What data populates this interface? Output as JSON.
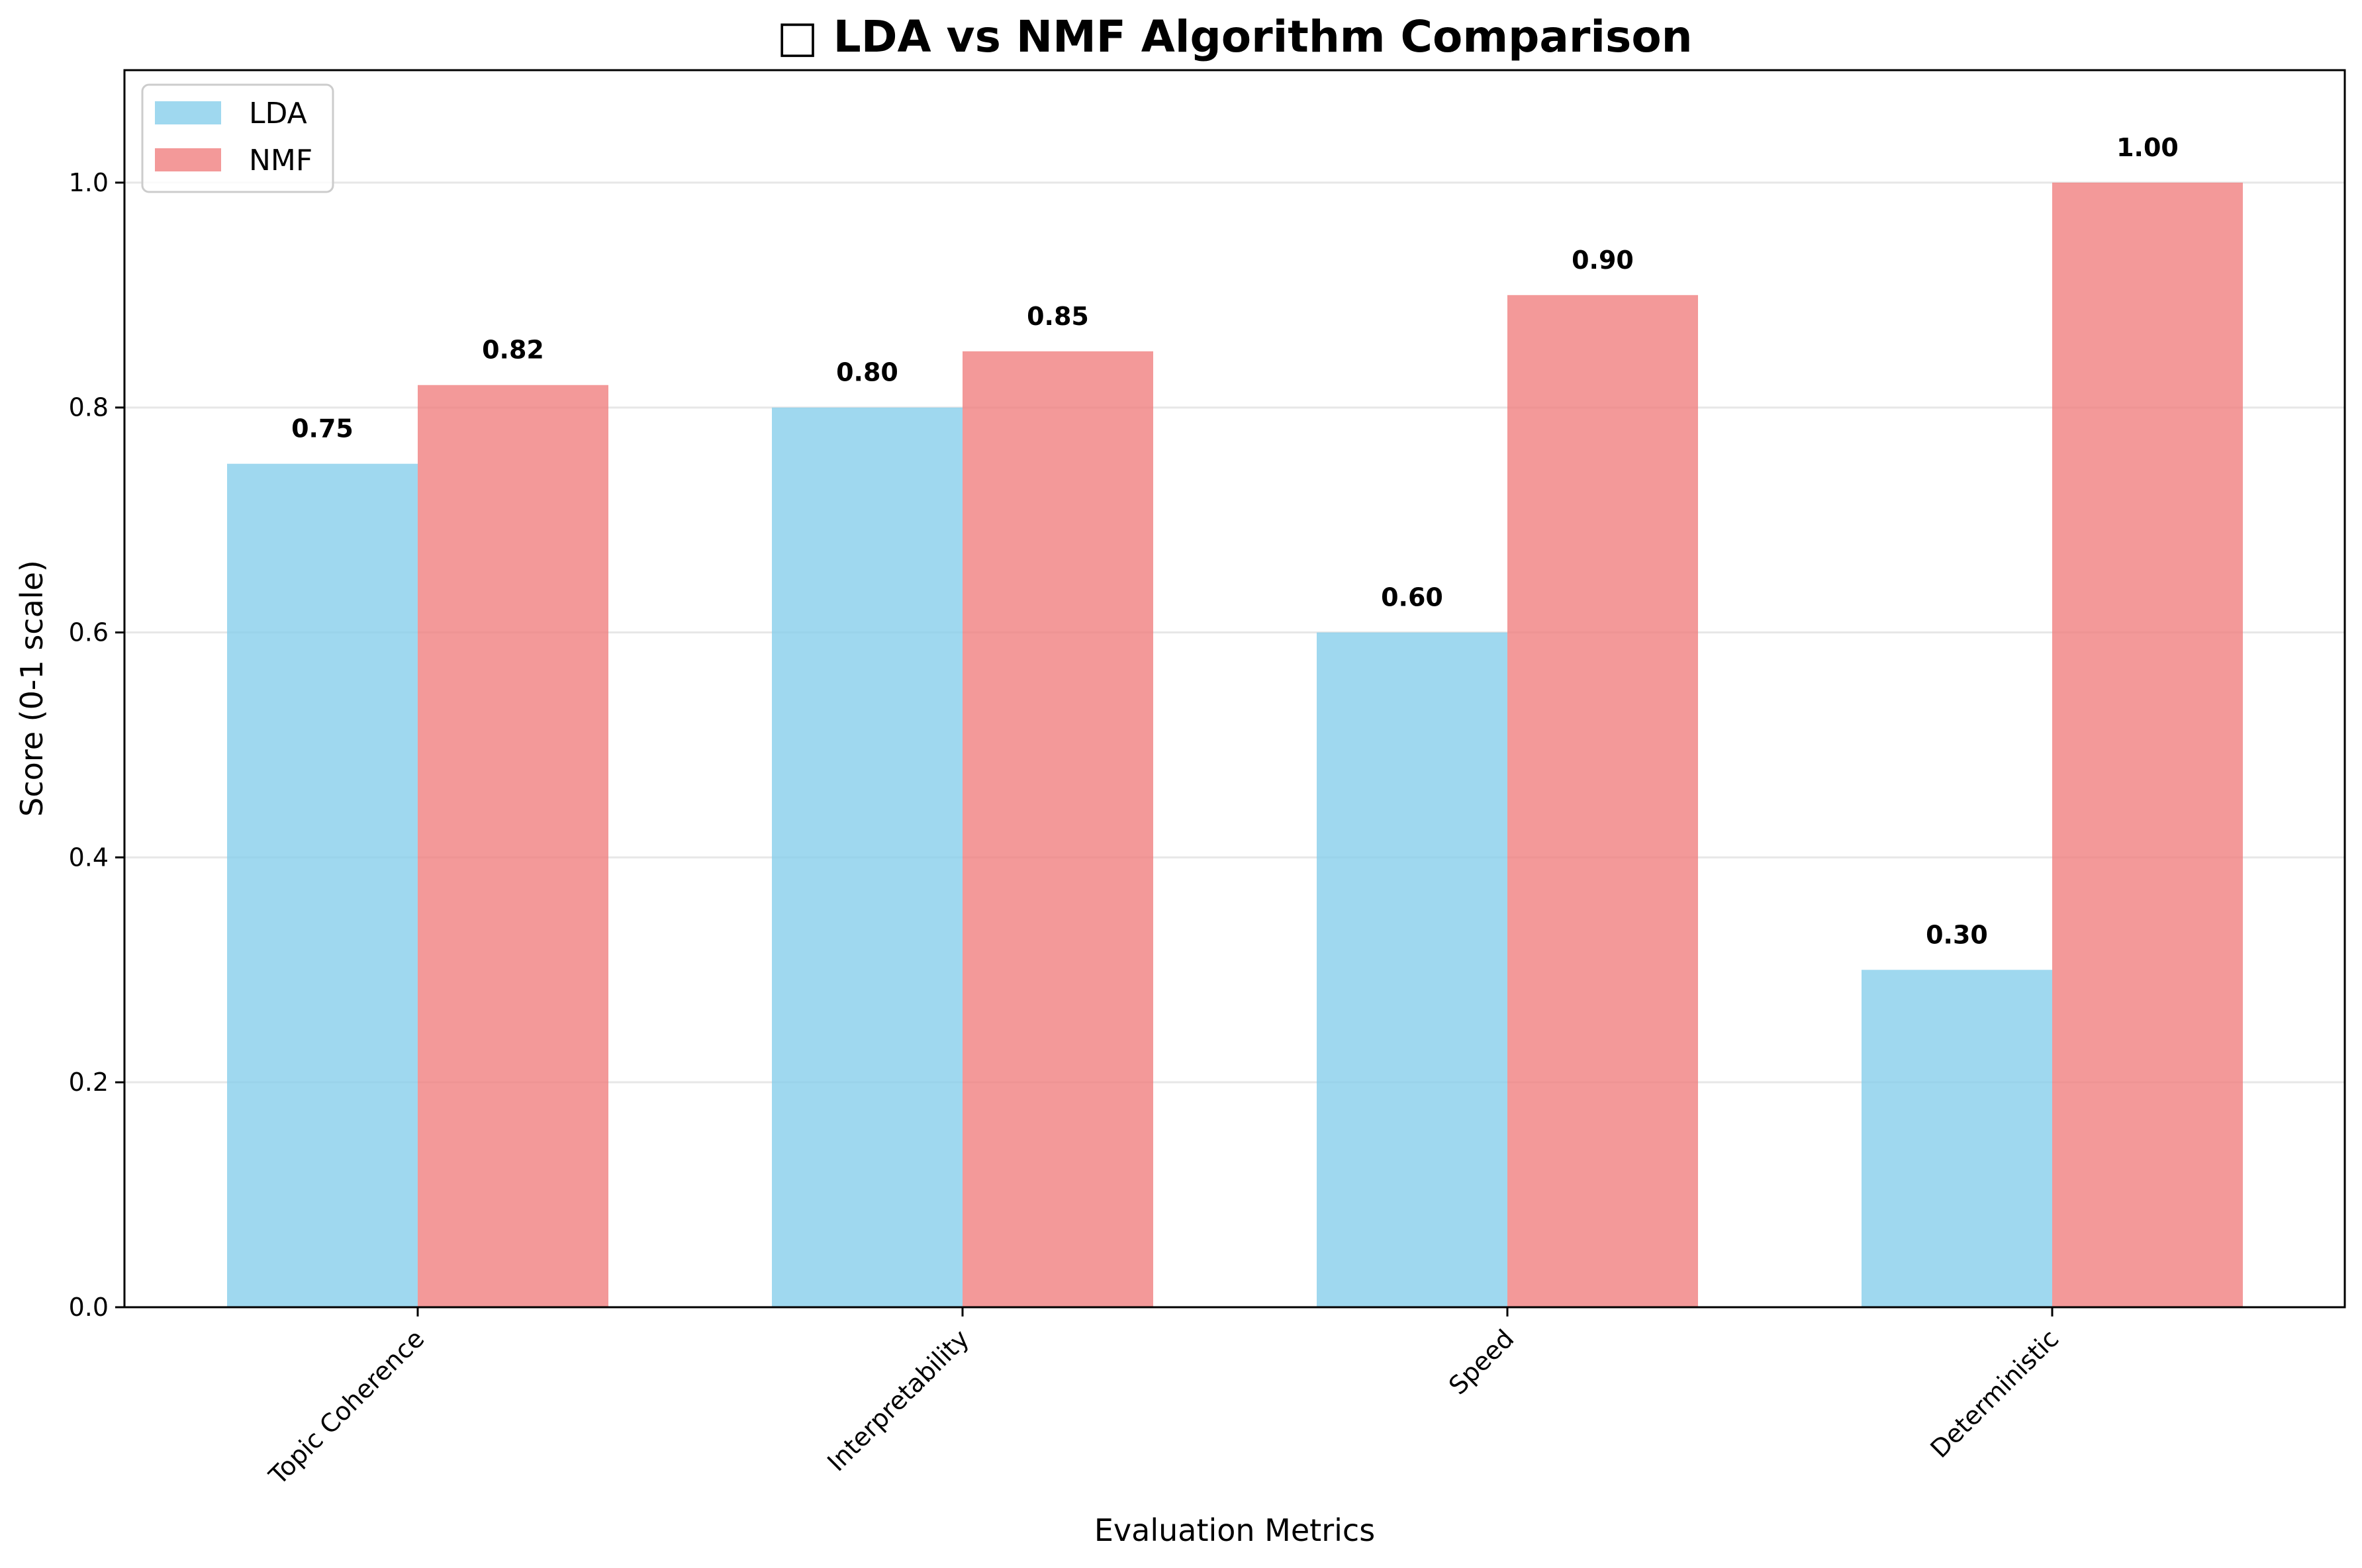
{
  "chart_data": {
    "type": "bar",
    "title": "□ LDA vs NMF Algorithm Comparison",
    "xlabel": "Evaluation Metrics",
    "ylabel": "Score (0-1 scale)",
    "categories": [
      "Topic Coherence",
      "Interpretability",
      "Speed",
      "Deterministic"
    ],
    "series": [
      {
        "name": "LDA",
        "values": [
          0.75,
          0.8,
          0.6,
          0.3
        ],
        "color": "#87CEEB"
      },
      {
        "name": "NMF",
        "values": [
          0.82,
          0.85,
          0.9,
          1.0
        ],
        "color": "#F08080"
      }
    ],
    "value_labels": [
      [
        "0.75",
        "0.80",
        "0.60",
        "0.30"
      ],
      [
        "0.82",
        "0.85",
        "0.90",
        "1.00"
      ]
    ],
    "ylim": [
      0,
      1.1
    ],
    "yticks": [
      "0.0",
      "0.2",
      "0.4",
      "0.6",
      "0.8",
      "1.0"
    ],
    "grid": "horizontal",
    "legend_position": "top-left"
  }
}
